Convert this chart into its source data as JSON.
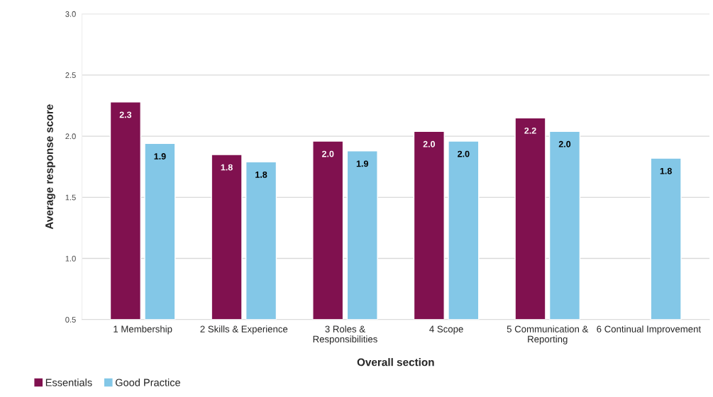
{
  "chart_data": {
    "type": "bar",
    "xlabel": "Overall section",
    "ylabel": "Average response score",
    "categories": [
      "1 Membership",
      "2 Skills & Experience",
      "3 Roles &\nResponsibilities",
      "4 Scope",
      "5 Communication &\nReporting",
      "6 Continual Improvement"
    ],
    "series": [
      {
        "name": "Essentials",
        "color": "#80114f",
        "values": [
          2.28,
          1.85,
          1.96,
          2.04,
          2.15,
          null
        ],
        "value_labels": [
          "2.3",
          "1.8",
          "2.0",
          "2.0",
          "2.2",
          null
        ]
      },
      {
        "name": "Good Practice",
        "color": "#83c7e7",
        "values": [
          1.94,
          1.79,
          1.88,
          1.96,
          2.04,
          1.82
        ],
        "value_labels": [
          "1.9",
          "1.8",
          "1.9",
          "2.0",
          "2.0",
          "1.8"
        ]
      }
    ],
    "ylim": [
      0.5,
      3.0
    ],
    "yticks": [
      {
        "value": 0.5,
        "label": "0.5"
      },
      {
        "value": 1.0,
        "label": "1.0"
      },
      {
        "value": 1.5,
        "label": "1.5"
      },
      {
        "value": 2.0,
        "label": "2.0"
      },
      {
        "value": 2.5,
        "label": "2.5"
      },
      {
        "value": 3.0,
        "label": "3.0"
      }
    ],
    "grid": "y",
    "legend": "bottom left"
  }
}
